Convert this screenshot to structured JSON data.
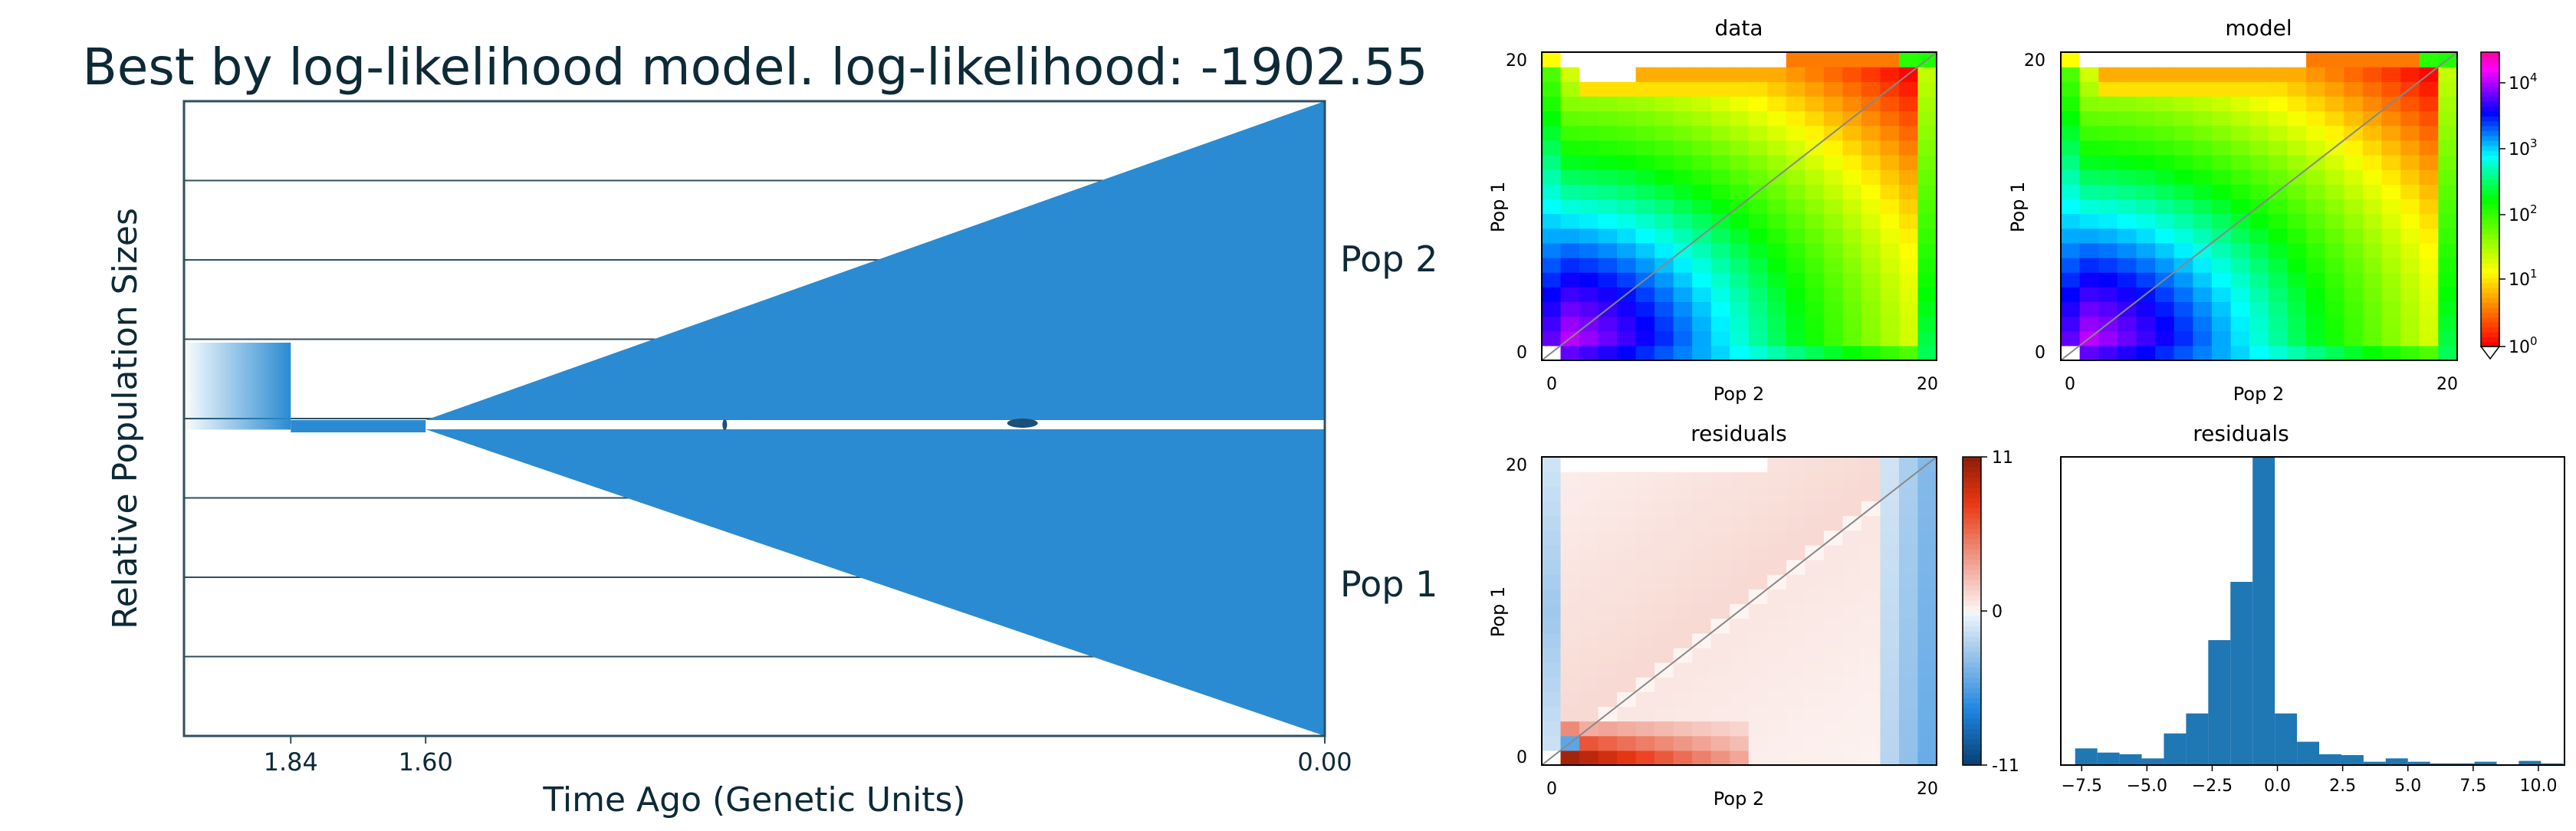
{
  "figure": {
    "title": "Best by log-likelihood model. log-likelihood: -1902.55"
  },
  "colors": {
    "pop_fill": "#2a8bd2",
    "grid_line": "#2f4f5f",
    "text": "#0d2a36"
  },
  "chart_data": [
    {
      "type": "area",
      "name": "demography",
      "title": "Best by log-likelihood model. log-likelihood: -1902.55",
      "xlabel": "Time Ago (Genetic Units)",
      "ylabel": "Relative Population Sizes",
      "x_ticks": [
        "1.84",
        "1.60",
        "0.00"
      ],
      "x_tick_values": [
        1.84,
        1.6,
        0.0
      ],
      "xlim": [
        2.03,
        0.0
      ],
      "gridlines": 8,
      "grid": true,
      "populations": [
        {
          "label": "Pop 2",
          "time_start": 1.6,
          "time_end": 0.0,
          "relative_size_end": 1.0
        },
        {
          "label": "Pop 1",
          "time_start": 1.6,
          "time_end": 0.0,
          "relative_size_end": 1.0
        }
      ],
      "ancestral": [
        {
          "time_start": 2.03,
          "time_end": 1.84,
          "relative_size": 0.25,
          "gradient": true
        },
        {
          "time_start": 1.84,
          "time_end": 1.6,
          "relative_size": 0.02
        }
      ]
    },
    {
      "type": "heatmap",
      "name": "data",
      "title": "data",
      "xlabel": "Pop 2",
      "ylabel": "Pop 1",
      "x_ticks": [
        "0",
        "20"
      ],
      "y_ticks": [
        "0",
        "20"
      ],
      "shape": [
        21,
        21
      ],
      "scale": "log"
    },
    {
      "type": "heatmap",
      "name": "model",
      "title": "model",
      "xlabel": "Pop 2",
      "ylabel": "Pop 1",
      "x_ticks": [
        "0",
        "20"
      ],
      "y_ticks": [
        "0",
        "20"
      ],
      "shape": [
        21,
        21
      ],
      "scale": "log",
      "colorbar": {
        "labels": [
          "10",
          "10",
          "10",
          "10",
          "10"
        ],
        "exponents": [
          "4",
          "3",
          "2",
          "1",
          "0"
        ]
      }
    },
    {
      "type": "heatmap",
      "name": "residuals-heatmap",
      "title": "residuals",
      "xlabel": "Pop 2",
      "ylabel": "Pop 1",
      "x_ticks": [
        "0",
        "20"
      ],
      "y_ticks": [
        "0",
        "20"
      ],
      "shape": [
        21,
        21
      ],
      "colorbar": {
        "labels": [
          "11",
          "0",
          "-11"
        ],
        "range": [
          -11,
          11
        ]
      }
    },
    {
      "type": "bar",
      "name": "residuals-histogram",
      "title": "residuals",
      "x_ticks": [
        "-7.5",
        "-5.0",
        "-2.5",
        "0.0",
        "2.5",
        "5.0",
        "7.5",
        "10.0"
      ],
      "xlim": [
        -8.3,
        11.0
      ],
      "ylim": [
        0,
        37
      ],
      "bin_width": 0.85,
      "bin_starts": [
        -7.75,
        -6.9,
        -6.05,
        -5.2,
        -4.35,
        -3.5,
        -2.65,
        -1.8,
        -0.95,
        -0.1,
        0.75,
        1.6,
        2.45,
        3.3,
        4.15,
        5.0,
        5.85,
        6.7,
        7.55,
        8.4,
        9.25,
        10.1
      ],
      "counts": [
        2.0,
        1.5,
        1.3,
        0.8,
        3.8,
        6.2,
        15.0,
        22.0,
        37.0,
        6.2,
        2.8,
        1.3,
        1.2,
        0.4,
        0.8,
        0.4,
        0.2,
        0.2,
        0.4,
        0.1,
        0.5,
        0.2
      ]
    }
  ]
}
